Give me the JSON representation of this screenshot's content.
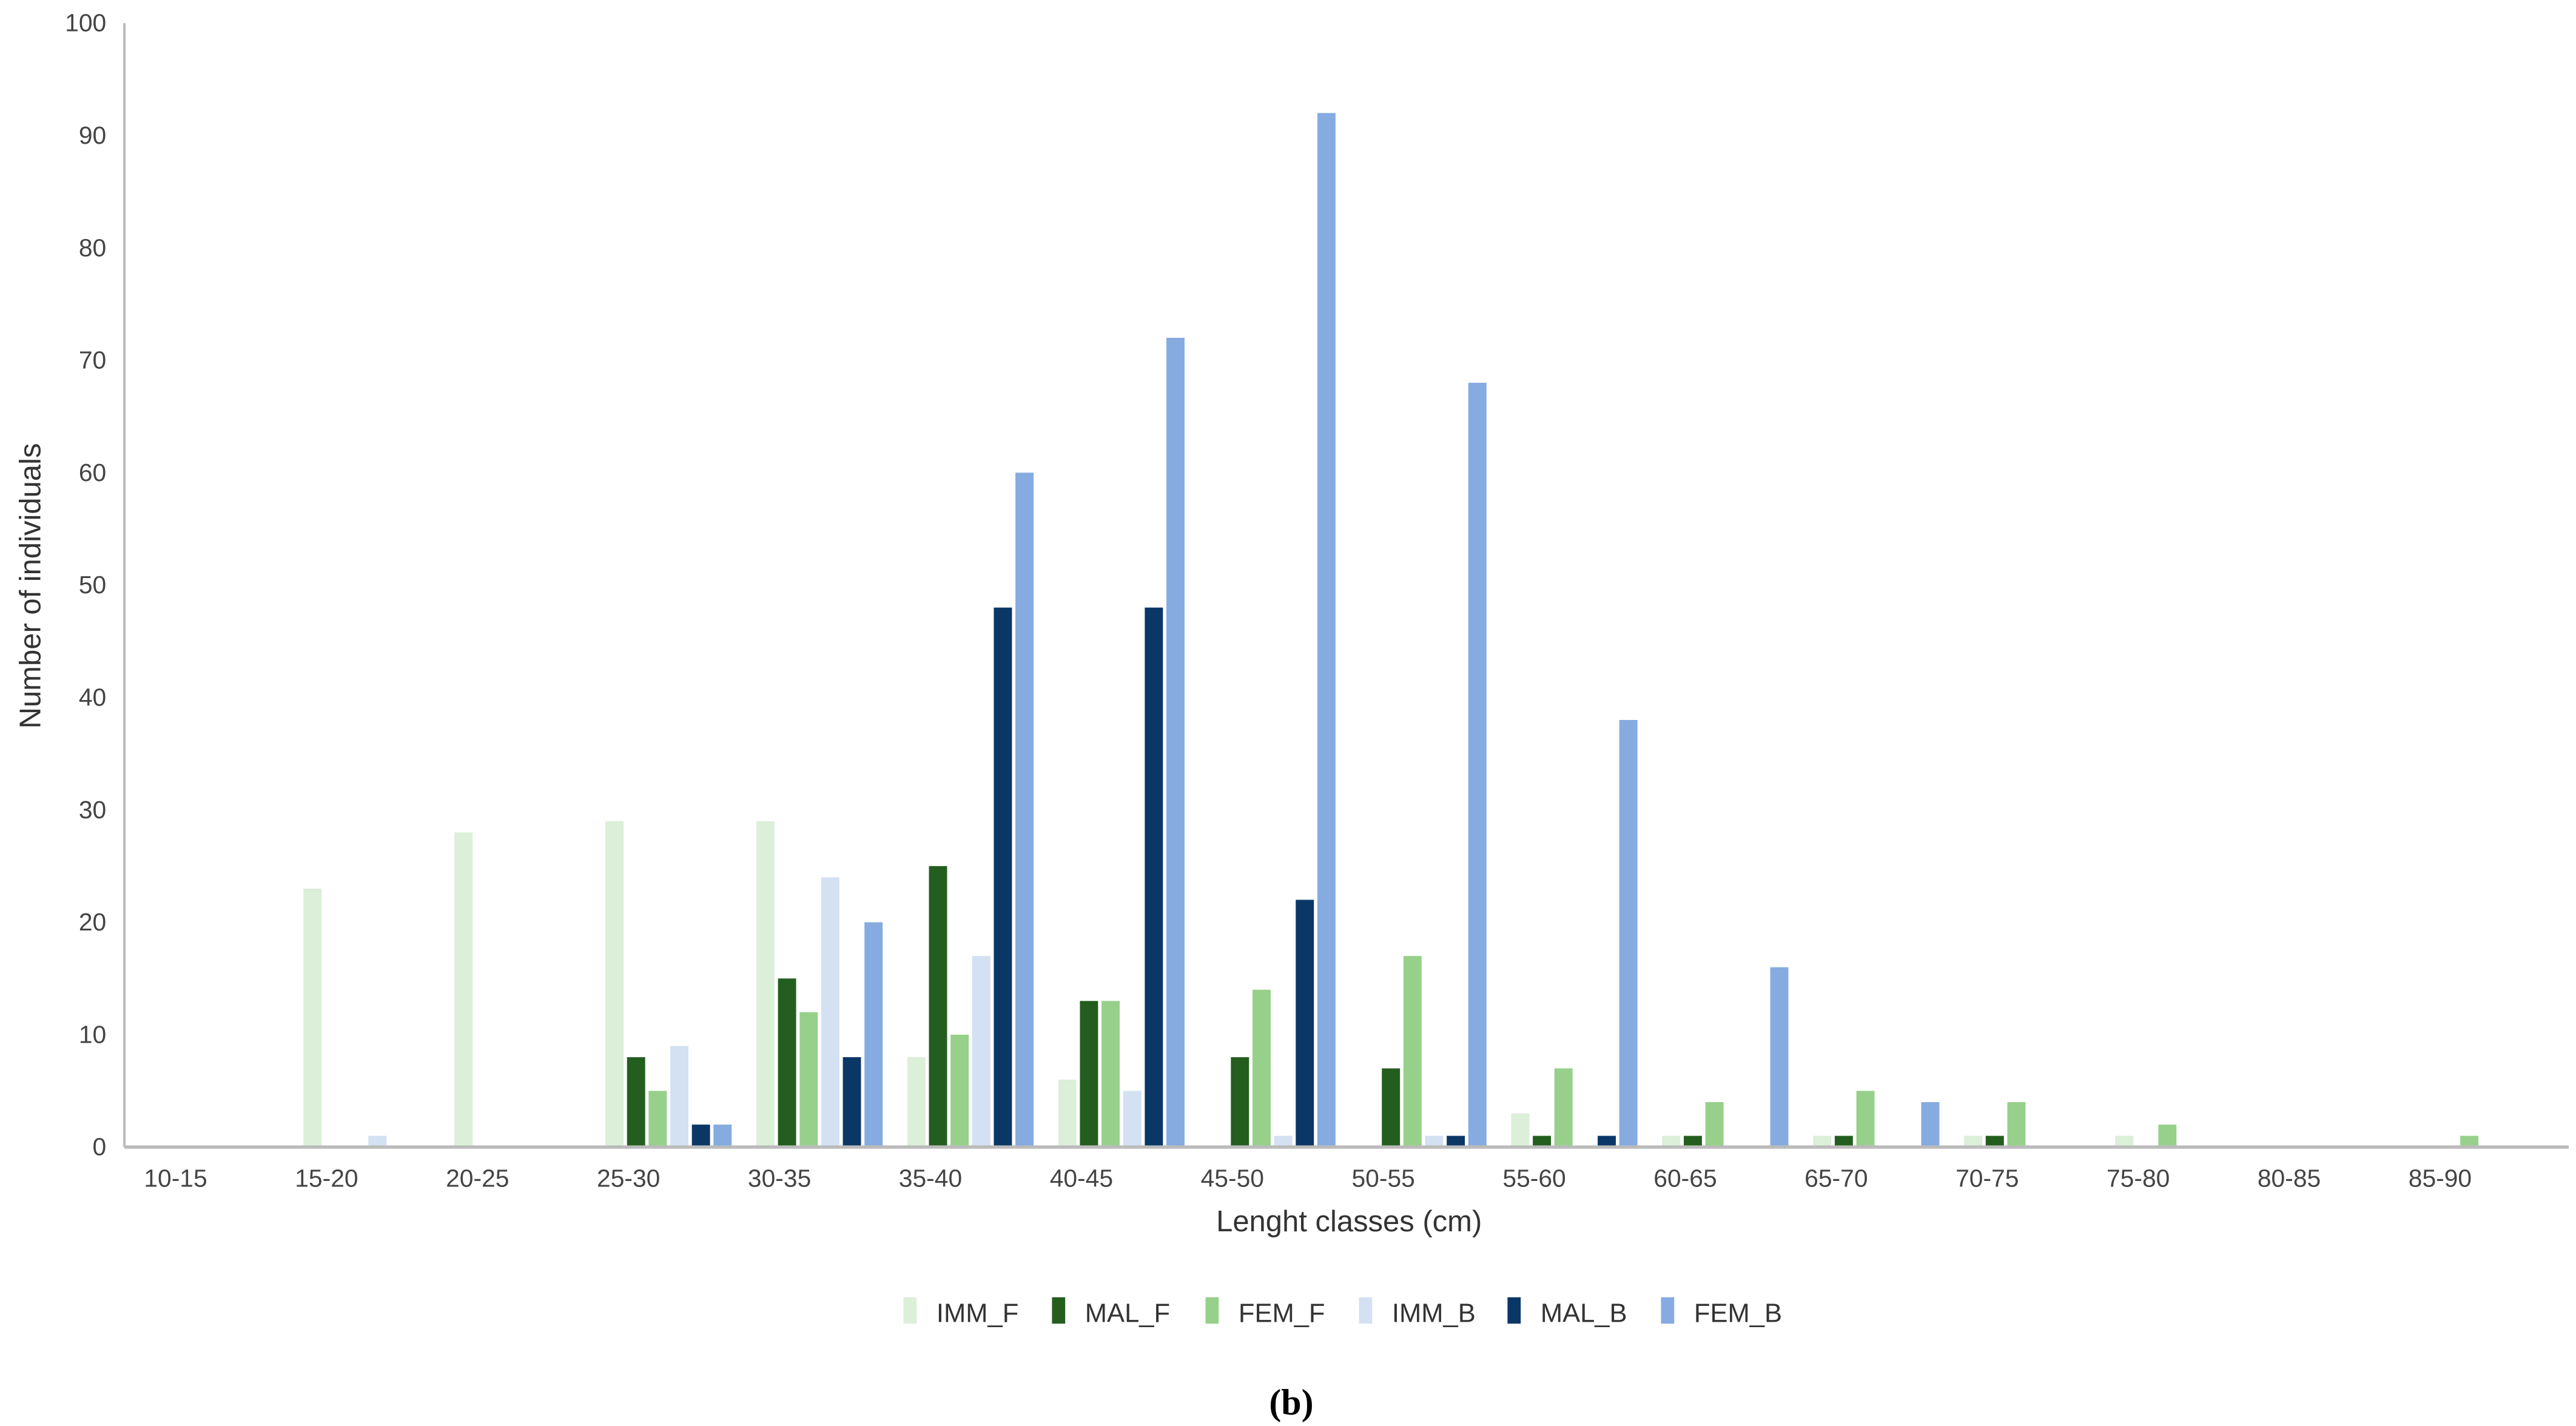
{
  "chart_data": {
    "type": "bar",
    "title": "",
    "xlabel": "Lenght classes (cm)",
    "ylabel": "Number of individuals",
    "caption": "(b)",
    "ylim": [
      0,
      100
    ],
    "yticks": [
      0,
      10,
      20,
      30,
      40,
      50,
      60,
      70,
      80,
      90,
      100
    ],
    "grid": false,
    "legend_placement": "bottom",
    "categories": [
      "10-15",
      "15-20",
      "20-25",
      "25-30",
      "30-35",
      "35-40",
      "40-45",
      "45-50",
      "50-55",
      "55-60",
      "60-65",
      "65-70",
      "70-75",
      "75-80",
      "80-85",
      "85-90"
    ],
    "series": [
      {
        "name": "IMM_F",
        "color": "#dcefd9",
        "values": [
          0,
          23,
          28,
          29,
          29,
          8,
          6,
          0,
          0,
          3,
          1,
          1,
          1,
          1,
          0,
          0
        ]
      },
      {
        "name": "MAL_F",
        "color": "#245e1f",
        "values": [
          0,
          0,
          0,
          8,
          15,
          25,
          13,
          8,
          7,
          1,
          1,
          1,
          1,
          0,
          0,
          0
        ]
      },
      {
        "name": "FEM_F",
        "color": "#96d08a",
        "values": [
          0,
          0,
          0,
          5,
          12,
          10,
          13,
          14,
          17,
          7,
          4,
          5,
          4,
          2,
          0,
          1
        ]
      },
      {
        "name": "IMM_B",
        "color": "#d3e1f2",
        "values": [
          0,
          1,
          0,
          9,
          24,
          17,
          5,
          1,
          1,
          0,
          0,
          0,
          0,
          0,
          0,
          0
        ]
      },
      {
        "name": "MAL_B",
        "color": "#0b3767",
        "values": [
          0,
          0,
          0,
          2,
          8,
          48,
          48,
          22,
          1,
          1,
          0,
          0,
          0,
          0,
          0,
          0
        ]
      },
      {
        "name": "FEM_B",
        "color": "#85abe0",
        "values": [
          0,
          0,
          0,
          2,
          20,
          60,
          72,
          92,
          68,
          38,
          16,
          4,
          0,
          0,
          0,
          0
        ]
      }
    ]
  }
}
